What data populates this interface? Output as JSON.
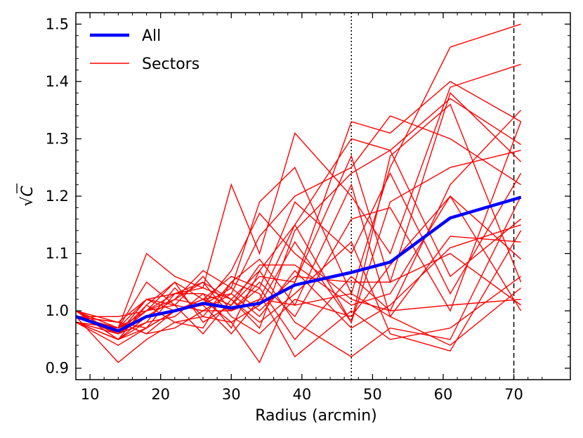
{
  "chart_data": {
    "type": "line",
    "xlabel": "Radius (arcmin)",
    "ylabel": "√C",
    "xlim": [
      8,
      78
    ],
    "ylim": [
      0.88,
      1.52
    ],
    "xticks": [
      10,
      20,
      30,
      40,
      50,
      60,
      70
    ],
    "yticks": [
      0.9,
      1.0,
      1.1,
      1.2,
      1.3,
      1.4,
      1.5
    ],
    "x": [
      8,
      14,
      18,
      22,
      26,
      30,
      34,
      39,
      47,
      52.5,
      61,
      71
    ],
    "reference_lines": [
      {
        "x": 47,
        "style": "dotted"
      },
      {
        "x": 70,
        "style": "dashed"
      }
    ],
    "legend_position": "top-left",
    "grid": false,
    "series": [
      {
        "name": "All",
        "color": "#0000ff",
        "values": [
          0.99,
          0.965,
          0.99,
          1.0,
          1.013,
          1.005,
          1.013,
          1.045,
          1.067,
          1.085,
          1.162,
          1.198
        ]
      },
      {
        "name": "Sectors",
        "color": "#ff0000",
        "lines": [
          [
            0.99,
            0.96,
            1.0,
            1.03,
            1.05,
            1.02,
            1.07,
            1.15,
            1.3,
            1.28,
            1.37,
            1.29
          ],
          [
            1.0,
            0.97,
            1.1,
            1.06,
            1.04,
            1.22,
            1.1,
            1.31,
            1.2,
            1.1,
            1.39,
            1.43
          ],
          [
            0.98,
            0.95,
            0.99,
            1.02,
            1.07,
            1.04,
            1.19,
            1.25,
            1.03,
            1.25,
            1.46,
            1.5
          ],
          [
            0.99,
            0.98,
            1.02,
            1.01,
            1.0,
            1.03,
            1.13,
            1.2,
            1.25,
            1.34,
            1.3,
            1.22
          ],
          [
            1.0,
            0.95,
            1.01,
            1.05,
            1.02,
            0.98,
            0.91,
            1.05,
            1.33,
            1.31,
            1.4,
            1.33
          ],
          [
            0.98,
            0.94,
            0.97,
            1.03,
            1.03,
            1.01,
            1.06,
            1.05,
            1.27,
            1.05,
            1.38,
            1.26
          ],
          [
            0.99,
            0.97,
            1.05,
            1.01,
            1.06,
            1.0,
            1.02,
            1.15,
            0.98,
            1.27,
            1.36,
            1.05
          ],
          [
            1.0,
            0.98,
            0.96,
            1.0,
            1.01,
            1.07,
            1.17,
            1.1,
            1.02,
            1.0,
            1.22,
            1.35
          ],
          [
            0.98,
            0.96,
            1.02,
            1.03,
            1.04,
            1.02,
            0.97,
            1.14,
            1.24,
            1.28,
            1.06,
            1.16
          ],
          [
            0.99,
            0.91,
            0.95,
            0.98,
            0.99,
            1.05,
            1.09,
            1.01,
            1.22,
            0.99,
            1.13,
            1.12
          ],
          [
            1.0,
            0.95,
            0.97,
            1.0,
            1.02,
            1.06,
            1.04,
            1.19,
            1.1,
            1.24,
            1.03,
            1.24
          ],
          [
            0.99,
            0.99,
            1.0,
            1.05,
            0.98,
            1.01,
            1.08,
            1.08,
            1.01,
            1.03,
            1.2,
            1.09
          ],
          [
            0.98,
            0.97,
            0.99,
            1.0,
            1.02,
            1.0,
            1.05,
            0.99,
            1.16,
            1.18,
            1.0,
            1.33
          ],
          [
            1.0,
            0.96,
            0.98,
            1.04,
            0.99,
            0.98,
            1.01,
            1.12,
            0.98,
            1.19,
            1.25,
            1.28
          ],
          [
            0.99,
            0.97,
            1.02,
            1.0,
            1.01,
            1.04,
            1.0,
            1.06,
            1.05,
            1.05,
            1.1,
            1.01
          ],
          [
            0.98,
            0.95,
            0.98,
            0.99,
            1.03,
            0.97,
            1.07,
            0.98,
            0.92,
            0.97,
            0.95,
            1.2
          ],
          [
            1.0,
            0.97,
            1.0,
            1.01,
            0.96,
            1.02,
            0.98,
            1.03,
            1.12,
            0.96,
            0.93,
            1.14
          ],
          [
            0.99,
            0.98,
            0.96,
            0.97,
            1.0,
            1.0,
            1.04,
            0.95,
            1.06,
            1.0,
            1.01,
            1.02
          ],
          [
            0.98,
            0.96,
            0.99,
            1.02,
            1.05,
            0.99,
            0.96,
            1.02,
            0.99,
            1.08,
            1.2,
            1.0
          ],
          [
            1.0,
            0.96,
            1.01,
            0.98,
            0.97,
            1.05,
            1.03,
            0.92,
            1.0,
            0.95,
            0.97,
            1.06
          ],
          [
            0.99,
            0.98,
            0.97,
            1.0,
            1.02,
            1.03,
            0.99,
            1.07,
            0.97,
            1.01,
            1.11,
            1.15
          ],
          [
            0.98,
            0.97,
            1.0,
            1.02,
            1.01,
            0.96,
            1.02,
            1.01,
            1.03,
            0.99,
            0.94,
            1.04
          ]
        ]
      }
    ]
  }
}
